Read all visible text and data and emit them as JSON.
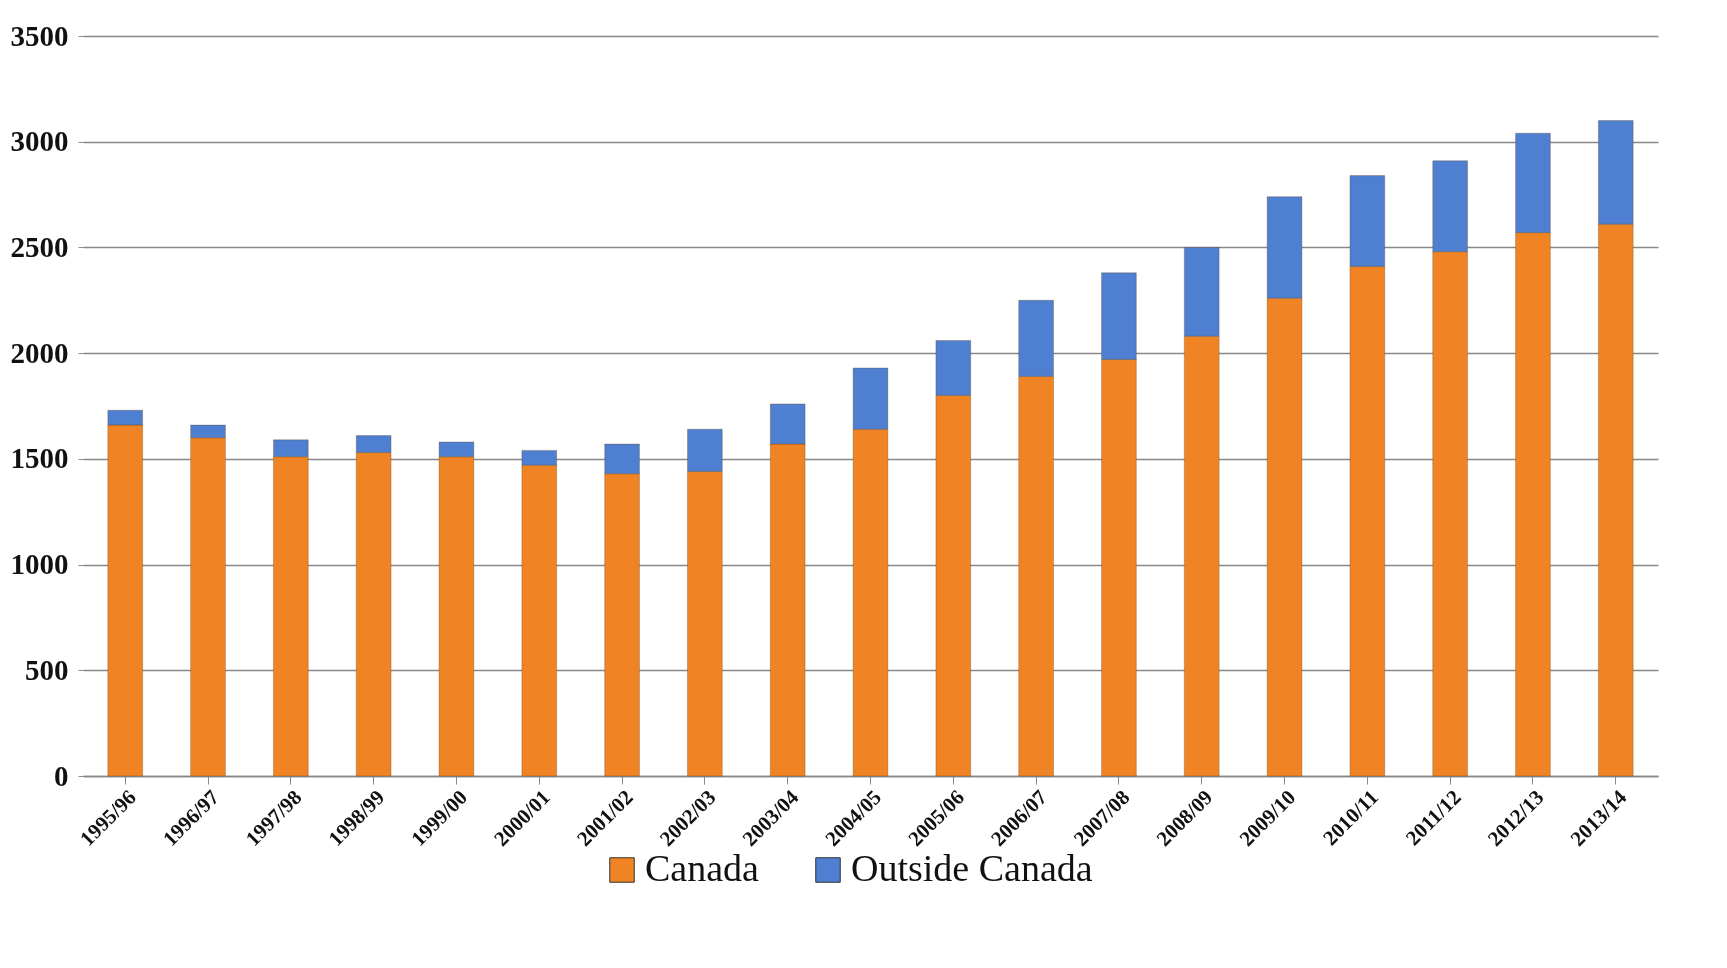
{
  "chart_data": {
    "type": "bar",
    "stacked": true,
    "categories": [
      "1995/96",
      "1996/97",
      "1997/98",
      "1998/99",
      "1999/00",
      "2000/01",
      "2001/02",
      "2002/03",
      "2003/04",
      "2004/05",
      "2005/06",
      "2006/07",
      "2007/08",
      "2008/09",
      "2009/10",
      "2010/11",
      "2011/12",
      "2012/13",
      "2013/14"
    ],
    "series": [
      {
        "name": "Canada",
        "color": "#f08424",
        "values": [
          1660,
          1600,
          1510,
          1530,
          1510,
          1470,
          1430,
          1440,
          1570,
          1640,
          1800,
          1890,
          1970,
          2080,
          2260,
          2410,
          2480,
          2570,
          2610
        ]
      },
      {
        "name": "Outside Canada",
        "color": "#4f7fd0",
        "values": [
          70,
          60,
          80,
          80,
          70,
          70,
          140,
          200,
          190,
          290,
          260,
          360,
          410,
          420,
          480,
          430,
          430,
          470,
          490
        ]
      }
    ],
    "ylim": [
      0,
      3500
    ],
    "yticks": [
      0,
      500,
      1000,
      1500,
      2000,
      2500,
      3000,
      3500
    ],
    "grid": "y",
    "legend": "bottom"
  }
}
